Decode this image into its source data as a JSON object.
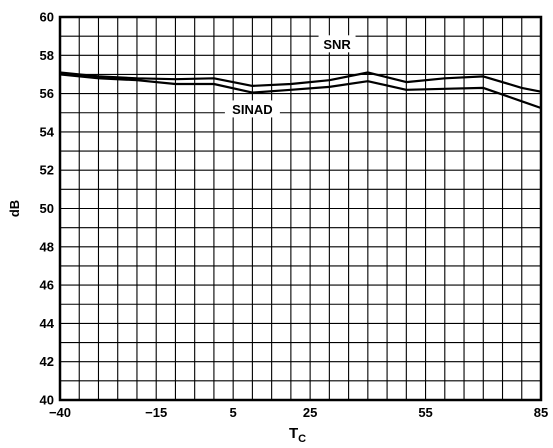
{
  "chart_data": {
    "type": "line",
    "title": "",
    "xlabel": "T",
    "xlabel_sub": "C",
    "ylabel": "dB",
    "xlim": [
      -40,
      85
    ],
    "ylim": [
      40,
      60
    ],
    "x_tick_labels": [
      "−40",
      "−15",
      "5",
      "25",
      "55",
      "85"
    ],
    "x_tick_values": [
      -40,
      -15,
      5,
      25,
      55,
      85
    ],
    "y_tick_labels": [
      "40",
      "42",
      "44",
      "46",
      "48",
      "50",
      "52",
      "54",
      "56",
      "58",
      "60"
    ],
    "y_tick_values": [
      40,
      42,
      44,
      46,
      48,
      50,
      52,
      54,
      56,
      58,
      60
    ],
    "grid": true,
    "series": [
      {
        "name": "SNR",
        "x": [
          -40,
          -30,
          -20,
          -10,
          0,
          10,
          20,
          30,
          40,
          50,
          60,
          70,
          80,
          85
        ],
        "y": [
          57.1,
          56.9,
          56.8,
          56.75,
          56.8,
          56.4,
          56.5,
          56.7,
          57.1,
          56.6,
          56.8,
          56.9,
          56.3,
          56.1
        ]
      },
      {
        "name": "SINAD",
        "x": [
          -40,
          -30,
          -20,
          -10,
          0,
          10,
          20,
          30,
          40,
          50,
          60,
          70,
          80,
          85
        ],
        "y": [
          57.0,
          56.8,
          56.7,
          56.5,
          56.5,
          56.05,
          56.2,
          56.35,
          56.65,
          56.2,
          56.25,
          56.3,
          55.6,
          55.25
        ]
      }
    ]
  }
}
